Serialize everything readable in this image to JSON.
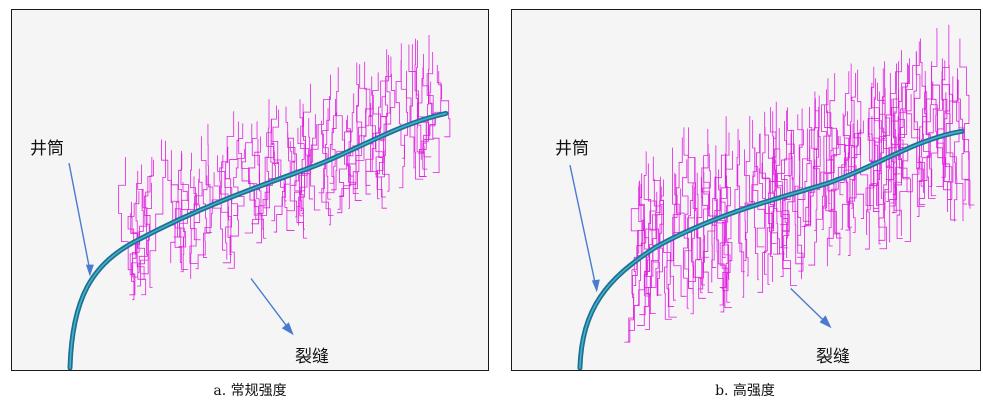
{
  "panels": [
    {
      "id": "a",
      "wellbore_label": "井筒",
      "fracture_label": "裂缝",
      "caption": "a. 常规强度"
    },
    {
      "id": "b",
      "wellbore_label": "井筒",
      "fracture_label": "裂缝",
      "caption": "b. 高强度"
    }
  ],
  "colors": {
    "panel_background": "#f5f5f5",
    "wellbore": "#1f7f9f",
    "wellbore_highlight": "#3fb3d0",
    "fracture": "#e020e0",
    "arrow": "#4a7ad0"
  }
}
